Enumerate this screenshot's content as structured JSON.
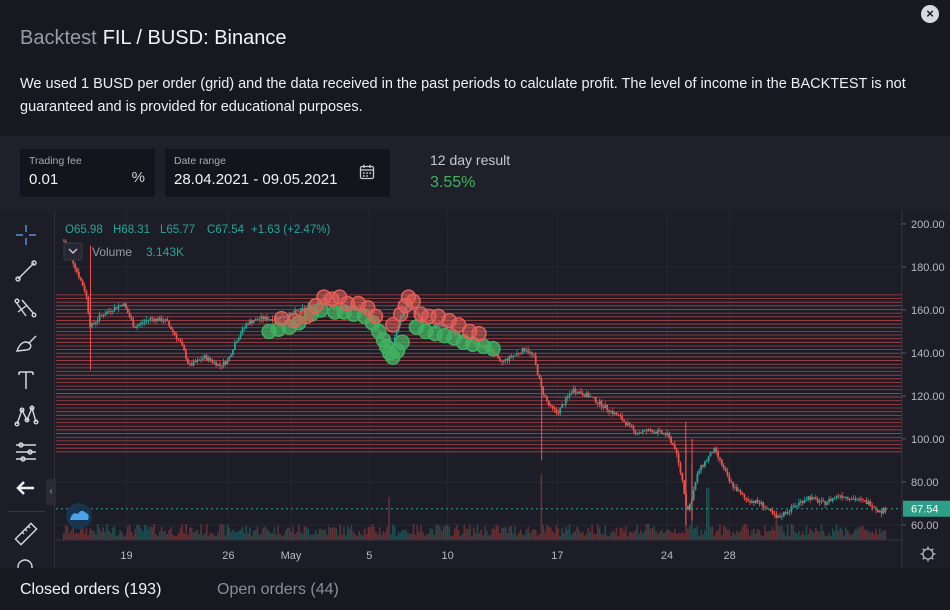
{
  "header": {
    "muted_title": "Backtest",
    "title": "FIL / BUSD: Binance",
    "description": "We used 1 BUSD per order (grid) and the data received in the past periods to calculate profit. The level of income in the BACKTEST is not guaranteed and is provided for educational purposes.",
    "close_label": "×"
  },
  "controls": {
    "trading_fee": {
      "label": "Trading fee",
      "value": "0.01",
      "unit": "%"
    },
    "date_range": {
      "label": "Date range",
      "value": "28.04.2021 - 09.05.2021"
    },
    "result": {
      "label": "12 day result",
      "value": "3.55%"
    }
  },
  "legend": {
    "ohlc": {
      "o": "O65.98",
      "h": "H68.31",
      "l": "L65.77",
      "c": "C67.54",
      "change": "+1.63 (+2.47%)"
    },
    "volume_label": "Volume",
    "volume_value": "3.143K"
  },
  "colors": {
    "up": "#26a69a",
    "down": "#ef5350",
    "buy": "#3fb262",
    "sell": "#e4605a",
    "grid": "#c9494b",
    "price_tag": "#2e9e89"
  },
  "tabs": {
    "closed": "Closed orders (193)",
    "open": "Open orders (44)"
  },
  "chart_data": {
    "type": "candlestick",
    "x_ticks": [
      "19",
      "26",
      "May",
      "5",
      "10",
      "17",
      "24",
      "28"
    ],
    "y_ticks": [
      "200.00",
      "180.00",
      "160.00",
      "140.00",
      "120.00",
      "100.00",
      "80.00",
      "60.00"
    ],
    "ylim": [
      53,
      206
    ],
    "last_price": "67.54",
    "grid_range": [
      94,
      167
    ],
    "grid_lines": 44,
    "close_path": [
      {
        "d": 15.5,
        "p": 192
      },
      {
        "d": 16.0,
        "p": 184
      },
      {
        "d": 16.5,
        "p": 175
      },
      {
        "d": 16.9,
        "p": 168
      },
      {
        "d": 17.2,
        "p": 152
      },
      {
        "d": 17.8,
        "p": 157
      },
      {
        "d": 18.5,
        "p": 160
      },
      {
        "d": 19.3,
        "p": 163
      },
      {
        "d": 20.0,
        "p": 152
      },
      {
        "d": 21.0,
        "p": 156
      },
      {
        "d": 22.0,
        "p": 155
      },
      {
        "d": 23.0,
        "p": 144
      },
      {
        "d": 23.5,
        "p": 134
      },
      {
        "d": 24.5,
        "p": 138
      },
      {
        "d": 25.5,
        "p": 134
      },
      {
        "d": 26.0,
        "p": 137
      },
      {
        "d": 26.5,
        "p": 146
      },
      {
        "d": 27.2,
        "p": 154
      },
      {
        "d": 28.0,
        "p": 156
      },
      {
        "d": 29.0,
        "p": 156
      },
      {
        "d": 30.0,
        "p": 158
      },
      {
        "d": 31.0,
        "p": 161
      },
      {
        "d": 32.0,
        "p": 165
      },
      {
        "d": 32.5,
        "p": 162
      },
      {
        "d": 33.0,
        "p": 160
      },
      {
        "d": 34.0,
        "p": 162
      },
      {
        "d": 35.0,
        "p": 158
      },
      {
        "d": 35.5,
        "p": 150
      },
      {
        "d": 36.0,
        "p": 144
      },
      {
        "d": 36.3,
        "p": 140
      },
      {
        "d": 36.7,
        "p": 148
      },
      {
        "d": 37.0,
        "p": 156
      },
      {
        "d": 37.4,
        "p": 163
      },
      {
        "d": 37.8,
        "p": 160
      },
      {
        "d": 38.4,
        "p": 154
      },
      {
        "d": 39.0,
        "p": 153
      },
      {
        "d": 40.0,
        "p": 152
      },
      {
        "d": 41.0,
        "p": 147
      },
      {
        "d": 42.0,
        "p": 144
      },
      {
        "d": 43.0,
        "p": 140
      },
      {
        "d": 43.3,
        "p": 135
      },
      {
        "d": 44.0,
        "p": 138
      },
      {
        "d": 45.0,
        "p": 142
      },
      {
        "d": 45.5,
        "p": 138
      },
      {
        "d": 46.0,
        "p": 123
      },
      {
        "d": 46.5,
        "p": 115
      },
      {
        "d": 47.0,
        "p": 112
      },
      {
        "d": 48.0,
        "p": 123
      },
      {
        "d": 49.0,
        "p": 120
      },
      {
        "d": 50.0,
        "p": 115
      },
      {
        "d": 51.0,
        "p": 110
      },
      {
        "d": 52.0,
        "p": 103
      },
      {
        "d": 53.0,
        "p": 104
      },
      {
        "d": 54.0,
        "p": 102
      },
      {
        "d": 54.5,
        "p": 96
      },
      {
        "d": 55.0,
        "p": 80
      },
      {
        "d": 55.3,
        "p": 66
      },
      {
        "d": 55.6,
        "p": 73
      },
      {
        "d": 56.0,
        "p": 85
      },
      {
        "d": 56.5,
        "p": 90
      },
      {
        "d": 57.0,
        "p": 95
      },
      {
        "d": 57.5,
        "p": 88
      },
      {
        "d": 58.0,
        "p": 80
      },
      {
        "d": 59.0,
        "p": 72
      },
      {
        "d": 60.0,
        "p": 70
      },
      {
        "d": 61.0,
        "p": 63
      },
      {
        "d": 62.0,
        "p": 68
      },
      {
        "d": 63.0,
        "p": 73
      },
      {
        "d": 64.0,
        "p": 70
      },
      {
        "d": 65.0,
        "p": 74
      },
      {
        "d": 66.0,
        "p": 72
      },
      {
        "d": 67.0,
        "p": 70
      },
      {
        "d": 67.6,
        "p": 66
      },
      {
        "d": 68.0,
        "p": 67.5
      }
    ],
    "volume_spikes": [
      {
        "d": 46.0,
        "v": 0.7
      },
      {
        "d": 55.2,
        "v": 1.0
      },
      {
        "d": 55.6,
        "v": 0.8
      },
      {
        "d": 56.6,
        "v": 0.55
      },
      {
        "d": 36.3,
        "v": 0.45
      },
      {
        "d": 61.0,
        "v": 0.3
      }
    ],
    "sell_orders": [
      {
        "d": 29.4,
        "p": 156
      },
      {
        "d": 30.2,
        "p": 155
      },
      {
        "d": 31.0,
        "p": 157
      },
      {
        "d": 31.6,
        "p": 162
      },
      {
        "d": 32.1,
        "p": 166
      },
      {
        "d": 32.6,
        "p": 165
      },
      {
        "d": 33.1,
        "p": 166
      },
      {
        "d": 33.6,
        "p": 163
      },
      {
        "d": 34.3,
        "p": 163
      },
      {
        "d": 34.9,
        "p": 161
      },
      {
        "d": 35.4,
        "p": 157
      },
      {
        "d": 36.5,
        "p": 153
      },
      {
        "d": 37.0,
        "p": 158
      },
      {
        "d": 37.3,
        "p": 162
      },
      {
        "d": 37.5,
        "p": 166
      },
      {
        "d": 37.8,
        "p": 164
      },
      {
        "d": 38.3,
        "p": 158
      },
      {
        "d": 38.8,
        "p": 157
      },
      {
        "d": 39.4,
        "p": 157
      },
      {
        "d": 40.1,
        "p": 155
      },
      {
        "d": 40.7,
        "p": 153
      },
      {
        "d": 41.4,
        "p": 150
      },
      {
        "d": 42.0,
        "p": 149
      }
    ],
    "buy_orders": [
      {
        "d": 28.6,
        "p": 150
      },
      {
        "d": 29.2,
        "p": 151
      },
      {
        "d": 29.9,
        "p": 152
      },
      {
        "d": 30.5,
        "p": 154
      },
      {
        "d": 31.3,
        "p": 158
      },
      {
        "d": 31.9,
        "p": 160
      },
      {
        "d": 32.8,
        "p": 159
      },
      {
        "d": 33.4,
        "p": 159
      },
      {
        "d": 34.0,
        "p": 158
      },
      {
        "d": 34.7,
        "p": 157
      },
      {
        "d": 35.2,
        "p": 154
      },
      {
        "d": 35.6,
        "p": 150
      },
      {
        "d": 35.9,
        "p": 146
      },
      {
        "d": 36.1,
        "p": 143
      },
      {
        "d": 36.3,
        "p": 140
      },
      {
        "d": 36.5,
        "p": 138
      },
      {
        "d": 36.8,
        "p": 141
      },
      {
        "d": 37.1,
        "p": 145
      },
      {
        "d": 38.0,
        "p": 152
      },
      {
        "d": 38.6,
        "p": 150
      },
      {
        "d": 39.2,
        "p": 149
      },
      {
        "d": 39.8,
        "p": 148
      },
      {
        "d": 40.4,
        "p": 147
      },
      {
        "d": 41.0,
        "p": 145
      },
      {
        "d": 41.6,
        "p": 144
      },
      {
        "d": 42.3,
        "p": 143
      },
      {
        "d": 42.9,
        "p": 142
      }
    ]
  }
}
